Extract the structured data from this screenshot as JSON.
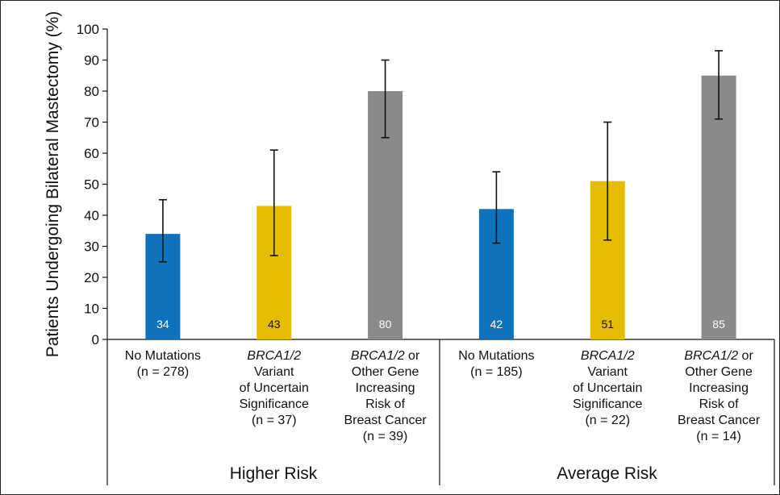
{
  "chart_data": {
    "type": "bar",
    "ylabel": "Patients Undergoing Bilateral Mastectomy (%)",
    "ylim": [
      0,
      100
    ],
    "yticks": [
      "0",
      "10",
      "20",
      "30",
      "40",
      "50",
      "60",
      "70",
      "80",
      "90",
      "100"
    ],
    "grid": false,
    "groups": [
      {
        "label": "Higher Risk"
      },
      {
        "label": "Average Risk"
      }
    ],
    "categories": [
      {
        "lines": [
          [
            {
              "t": "No Mutations",
              "i": false
            }
          ],
          [
            {
              "t": "(n = 278)",
              "i": false
            }
          ]
        ]
      },
      {
        "lines": [
          [
            {
              "t": "BRCA1/2",
              "i": true
            }
          ],
          [
            {
              "t": "Variant",
              "i": false
            }
          ],
          [
            {
              "t": "of Uncertain",
              "i": false
            }
          ],
          [
            {
              "t": "Significance",
              "i": false
            }
          ],
          [
            {
              "t": "(n = 37)",
              "i": false
            }
          ]
        ]
      },
      {
        "lines": [
          [
            {
              "t": "BRCA1/2",
              "i": true
            },
            {
              "t": " or",
              "i": false
            }
          ],
          [
            {
              "t": "Other Gene",
              "i": false
            }
          ],
          [
            {
              "t": "Increasing",
              "i": false
            }
          ],
          [
            {
              "t": "Risk of",
              "i": false
            }
          ],
          [
            {
              "t": "Breast Cancer",
              "i": false
            }
          ],
          [
            {
              "t": "(n = 39)",
              "i": false
            }
          ]
        ]
      },
      {
        "lines": [
          [
            {
              "t": "No Mutations",
              "i": false
            }
          ],
          [
            {
              "t": "(n = 185)",
              "i": false
            }
          ]
        ]
      },
      {
        "lines": [
          [
            {
              "t": "BRCA1/2",
              "i": true
            }
          ],
          [
            {
              "t": "Variant",
              "i": false
            }
          ],
          [
            {
              "t": "of Uncertain",
              "i": false
            }
          ],
          [
            {
              "t": "Significance",
              "i": false
            }
          ],
          [
            {
              "t": "(n = 22)",
              "i": false
            }
          ]
        ]
      },
      {
        "lines": [
          [
            {
              "t": "BRCA1/2",
              "i": true
            },
            {
              "t": " or",
              "i": false
            }
          ],
          [
            {
              "t": "Other Gene",
              "i": false
            }
          ],
          [
            {
              "t": "Increasing",
              "i": false
            }
          ],
          [
            {
              "t": "Risk of",
              "i": false
            }
          ],
          [
            {
              "t": "Breast Cancer",
              "i": false
            }
          ],
          [
            {
              "t": "(n = 14)",
              "i": false
            }
          ]
        ]
      }
    ],
    "values": [
      34,
      43,
      80,
      42,
      51,
      85
    ],
    "value_labels": [
      "34",
      "43",
      "80",
      "42",
      "51",
      "85"
    ],
    "error_low": [
      25,
      27,
      65,
      31,
      32,
      71
    ],
    "error_high": [
      45,
      61,
      90,
      54,
      70,
      93
    ],
    "colors": [
      "#0f72bd",
      "#e6bc00",
      "#8a8a8a",
      "#0f72bd",
      "#e6bc00",
      "#8a8a8a"
    ],
    "label_colors": [
      "#ffffff",
      "#111111",
      "#ffffff",
      "#ffffff",
      "#111111",
      "#ffffff"
    ]
  }
}
